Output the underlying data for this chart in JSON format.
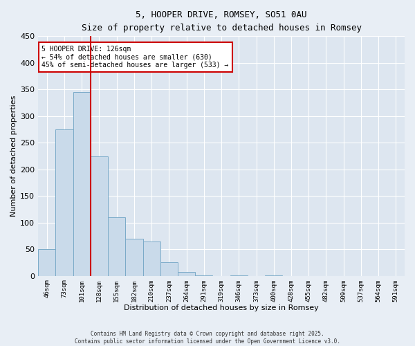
{
  "title": "5, HOOPER DRIVE, ROMSEY, SO51 0AU",
  "subtitle": "Size of property relative to detached houses in Romsey",
  "xlabel": "Distribution of detached houses by size in Romsey",
  "ylabel": "Number of detached properties",
  "bar_color": "#c9daea",
  "bar_edge_color": "#7aaac8",
  "categories": [
    "46sqm",
    "73sqm",
    "101sqm",
    "128sqm",
    "155sqm",
    "182sqm",
    "210sqm",
    "237sqm",
    "264sqm",
    "291sqm",
    "319sqm",
    "346sqm",
    "373sqm",
    "400sqm",
    "428sqm",
    "455sqm",
    "482sqm",
    "509sqm",
    "537sqm",
    "564sqm",
    "591sqm"
  ],
  "values": [
    50,
    275,
    345,
    225,
    110,
    70,
    65,
    25,
    7,
    1,
    0,
    1,
    0,
    1,
    0,
    0,
    0,
    0,
    0,
    0,
    0
  ],
  "ylim": [
    0,
    450
  ],
  "yticks": [
    0,
    50,
    100,
    150,
    200,
    250,
    300,
    350,
    400,
    450
  ],
  "vline_position": 2.5,
  "vline_color": "#cc0000",
  "annotation_text": "5 HOOPER DRIVE: 126sqm\n← 54% of detached houses are smaller (630)\n45% of semi-detached houses are larger (533) →",
  "annotation_box_color": "white",
  "annotation_box_edge_color": "#cc0000",
  "footer_line1": "Contains HM Land Registry data © Crown copyright and database right 2025.",
  "footer_line2": "Contains public sector information licensed under the Open Government Licence v3.0.",
  "background_color": "#e8eef5",
  "plot_bg_color": "#dde6f0",
  "grid_color": "#ffffff"
}
